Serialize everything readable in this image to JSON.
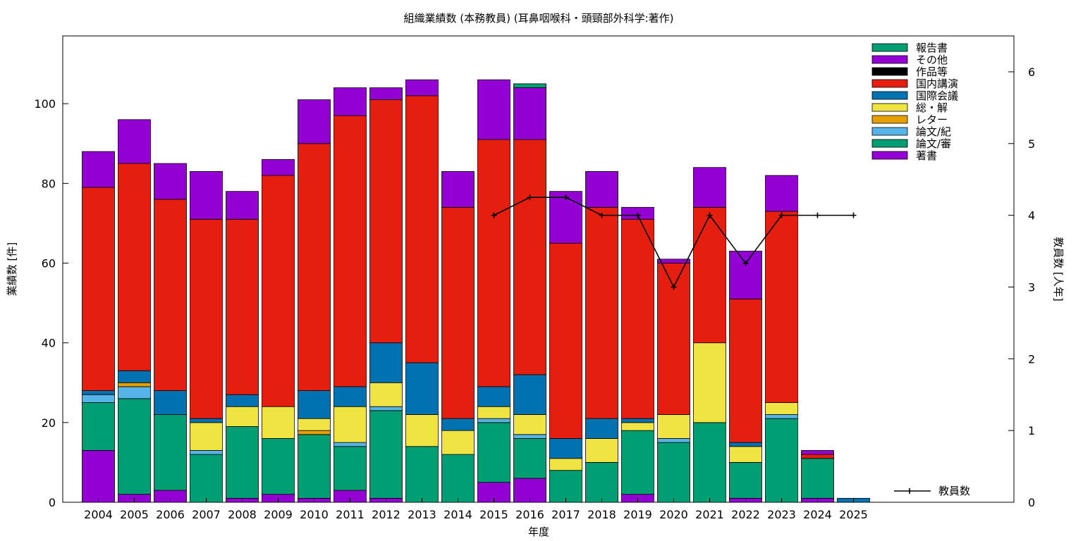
{
  "chart_data": {
    "type": "bar",
    "stacked": true,
    "title": "組織業績数 (本務教員) (耳鼻咽喉科・頭頸部外科学:著作)",
    "xlabel": "年度",
    "ylabel": "業績数 [件]",
    "y2label": "教員数 [人年]",
    "ylim": [
      0,
      117
    ],
    "y2lim": [
      0,
      6.5
    ],
    "yticks": [
      0,
      20,
      40,
      60,
      80,
      100
    ],
    "y2ticks": [
      0,
      1,
      2,
      3,
      4,
      5,
      6
    ],
    "grid": false,
    "legend_position": "top-right",
    "categories": [
      "2004",
      "2005",
      "2006",
      "2007",
      "2008",
      "2009",
      "2010",
      "2011",
      "2012",
      "2013",
      "2014",
      "2015",
      "2016",
      "2017",
      "2018",
      "2019",
      "2020",
      "2021",
      "2022",
      "2023",
      "2024",
      "2025"
    ],
    "series": [
      {
        "name": "著書",
        "color": "#9400d3",
        "values": [
          13,
          2,
          3,
          0,
          1,
          2,
          1,
          3,
          1,
          0,
          0,
          5,
          6,
          0,
          0,
          2,
          0,
          0,
          1,
          0,
          1,
          0
        ]
      },
      {
        "name": "論文/審",
        "color": "#009e73",
        "values": [
          12,
          24,
          19,
          12,
          18,
          14,
          16,
          11,
          22,
          14,
          12,
          15,
          10,
          8,
          10,
          16,
          15,
          20,
          9,
          21,
          10,
          0
        ]
      },
      {
        "name": "論文/紀",
        "color": "#56b4e9",
        "values": [
          2,
          3,
          0,
          1,
          0,
          0,
          0,
          1,
          1,
          0,
          0,
          1,
          1,
          0,
          0,
          0,
          1,
          0,
          0,
          1,
          0,
          0
        ]
      },
      {
        "name": "レター",
        "color": "#e69f00",
        "values": [
          0,
          1,
          0,
          0,
          0,
          0,
          1,
          0,
          0,
          0,
          0,
          0,
          0,
          0,
          0,
          0,
          0,
          0,
          0,
          0,
          0,
          0
        ]
      },
      {
        "name": "総・解",
        "color": "#f0e442",
        "values": [
          0,
          0,
          0,
          7,
          5,
          8,
          3,
          9,
          6,
          8,
          6,
          3,
          5,
          3,
          6,
          2,
          6,
          20,
          4,
          3,
          0,
          0
        ]
      },
      {
        "name": "国際会議",
        "color": "#0072b2",
        "values": [
          1,
          3,
          6,
          1,
          3,
          0,
          7,
          5,
          10,
          13,
          3,
          5,
          10,
          5,
          5,
          1,
          0,
          0,
          1,
          0,
          0,
          1
        ]
      },
      {
        "name": "国内講演",
        "color": "#e51e10",
        "values": [
          51,
          52,
          48,
          50,
          44,
          58,
          62,
          68,
          61,
          67,
          53,
          62,
          59,
          49,
          53,
          50,
          38,
          34,
          36,
          48,
          1,
          0
        ]
      },
      {
        "name": "作品等",
        "color": "#000000",
        "values": [
          0,
          0,
          0,
          0,
          0,
          0,
          0,
          0,
          0,
          0,
          0,
          0,
          0,
          0,
          0,
          0,
          0,
          0,
          0,
          0,
          0,
          0
        ]
      },
      {
        "name": "その他",
        "color": "#9400d3",
        "values": [
          9,
          11,
          9,
          12,
          7,
          4,
          11,
          7,
          3,
          4,
          9,
          15,
          13,
          13,
          9,
          3,
          1,
          10,
          12,
          9,
          1,
          0
        ]
      },
      {
        "name": "報告書",
        "color": "#009e73",
        "values": [
          0,
          0,
          0,
          0,
          0,
          0,
          0,
          0,
          0,
          0,
          0,
          0,
          1,
          0,
          0,
          0,
          0,
          0,
          0,
          0,
          0,
          0
        ]
      }
    ],
    "line_series": {
      "name": "教員数",
      "axis": "y2",
      "color": "#000000",
      "x": [
        "2015",
        "2016",
        "2017",
        "2018",
        "2019",
        "2020",
        "2021",
        "2022",
        "2023",
        "2024",
        "2025"
      ],
      "values": [
        4.0,
        4.25,
        4.25,
        4.0,
        4.0,
        3.0,
        4.0,
        3.33,
        4.0,
        4.0,
        4.0
      ]
    },
    "legend_order": [
      "報告書",
      "その他",
      "作品等",
      "国内講演",
      "国際会議",
      "総・解",
      "レター",
      "論文/紀",
      "論文/審",
      "著書"
    ]
  }
}
